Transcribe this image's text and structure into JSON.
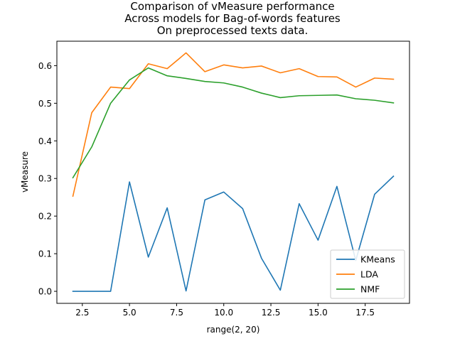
{
  "chart_data": {
    "type": "line",
    "title": [
      "Comparison of vMeasure performance",
      "Across models for Bag-of-words features",
      "On preprocessed texts data."
    ],
    "xlabel": "range(2, 20)",
    "ylabel": "vMeasure",
    "xlim": [
      1.15,
      19.85
    ],
    "ylim": [
      -0.032,
      0.665
    ],
    "xticks": [
      2.5,
      5.0,
      7.5,
      10.0,
      12.5,
      15.0,
      17.5
    ],
    "xtick_labels": [
      "2.5",
      "5.0",
      "7.5",
      "10.0",
      "12.5",
      "15.0",
      "17.5"
    ],
    "yticks": [
      0.0,
      0.1,
      0.2,
      0.3,
      0.4,
      0.5,
      0.6
    ],
    "ytick_labels": [
      "0.0",
      "0.1",
      "0.2",
      "0.3",
      "0.4",
      "0.5",
      "0.6"
    ],
    "grid": false,
    "legend_position": "lower-right",
    "x": [
      2,
      3,
      4,
      5,
      6,
      7,
      8,
      9,
      10,
      11,
      12,
      13,
      14,
      15,
      16,
      17,
      18,
      19
    ],
    "series": [
      {
        "name": "KMeans",
        "color": "#1f77b4",
        "values": [
          0.0,
          0.0,
          0.0,
          0.291,
          0.091,
          0.222,
          0.001,
          0.243,
          0.264,
          0.22,
          0.088,
          0.003,
          0.233,
          0.136,
          0.279,
          0.082,
          0.258,
          0.306
        ]
      },
      {
        "name": "LDA",
        "color": "#ff7f0e",
        "values": [
          0.253,
          0.475,
          0.543,
          0.539,
          0.605,
          0.592,
          0.634,
          0.584,
          0.602,
          0.594,
          0.599,
          0.581,
          0.592,
          0.571,
          0.57,
          0.543,
          0.567,
          0.564
        ]
      },
      {
        "name": "NMF",
        "color": "#2ca02c",
        "values": [
          0.302,
          0.384,
          0.5,
          0.562,
          0.594,
          0.573,
          0.566,
          0.558,
          0.554,
          0.543,
          0.527,
          0.515,
          0.52,
          0.521,
          0.522,
          0.512,
          0.508,
          0.501
        ]
      }
    ]
  }
}
